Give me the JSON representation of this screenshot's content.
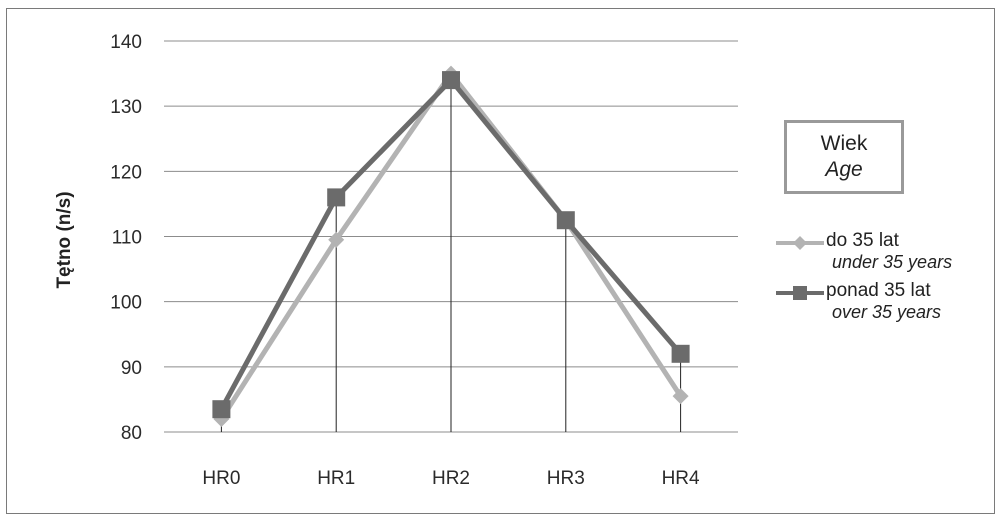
{
  "chart_data": {
    "type": "line",
    "categories": [
      "HR0",
      "HR1",
      "HR2",
      "HR3",
      "HR4"
    ],
    "ylabel": "Tętno (n/s)",
    "ylim": [
      80,
      140
    ],
    "yticks": [
      80,
      90,
      100,
      110,
      120,
      130,
      140
    ],
    "grid": true,
    "legend_placement": "right",
    "legend_title": [
      "Wiek",
      "Age"
    ],
    "series": [
      {
        "name": "do 35 lat",
        "name_en": "under 35 years",
        "values": [
          82,
          109.5,
          135,
          112.5,
          85.5
        ],
        "color": "#b3b3b3",
        "marker": "diamond"
      },
      {
        "name": "ponad 35 lat",
        "name_en": "over 35 years",
        "values": [
          83.5,
          116,
          134,
          112.5,
          92
        ],
        "color": "#6b6b6b",
        "marker": "square"
      }
    ]
  }
}
